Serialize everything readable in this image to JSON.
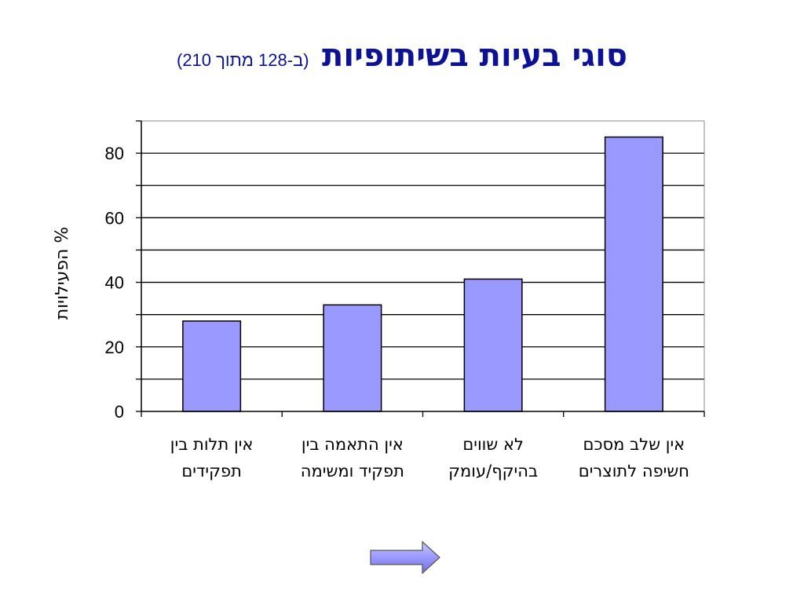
{
  "slide": {
    "title": "סוגי בעיות בשיתופיות",
    "subtitle": "(ב-128 מתוך 210)"
  },
  "chart_data": {
    "type": "bar",
    "categories": [
      [
        "אין תלות בין",
        "תפקידים"
      ],
      [
        "אין התאמה בין",
        "תפקיד ומשימה"
      ],
      [
        "לא שווים",
        "בהיקף/עומק"
      ],
      [
        "אין שלב מסכם",
        "חשיפה לתוצרים"
      ]
    ],
    "values": [
      28,
      33,
      41,
      85
    ],
    "ylabel": "% הפעילויות",
    "ylim": [
      0,
      90
    ],
    "yticks": [
      0,
      20,
      40,
      60,
      80
    ],
    "grid": true,
    "colors": {
      "bar": "#9999ff",
      "bar_stroke": "#000000",
      "grid": "#000000"
    }
  },
  "nav": {
    "next_icon": "right-arrow-icon",
    "arrow_fill": "#9999ff"
  }
}
